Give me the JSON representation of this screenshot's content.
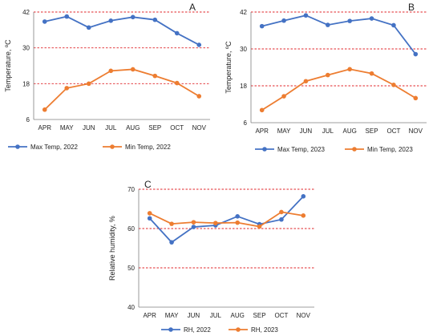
{
  "chart_data": [
    {
      "type": "line",
      "panel_label": "A",
      "title": "",
      "xlabel": "",
      "ylabel": "Temperature, ºC",
      "categories": [
        "APR",
        "MAY",
        "JUN",
        "JUL",
        "AUG",
        "SEP",
        "OCT",
        "NOV"
      ],
      "ylim": [
        6,
        42
      ],
      "yticks": [
        6,
        18,
        30,
        42
      ],
      "reference_lines": [
        18,
        30,
        42
      ],
      "grid": false,
      "legend_position": "bottom",
      "series": [
        {
          "name": "Max Temp, 2022",
          "color": "#4472C4",
          "values": [
            38.8,
            40.5,
            36.8,
            39.1,
            40.3,
            39.4,
            34.9,
            31.0
          ]
        },
        {
          "name": "Min Temp, 2022",
          "color": "#ED7D31",
          "values": [
            9.3,
            16.5,
            18.0,
            22.3,
            22.8,
            20.6,
            18.2,
            13.8
          ]
        }
      ]
    },
    {
      "type": "line",
      "panel_label": "B",
      "title": "",
      "xlabel": "",
      "ylabel": "Temperature, ºC",
      "categories": [
        "APR",
        "MAY",
        "JUN",
        "JUL",
        "AUG",
        "SEP",
        "OCT",
        "NOV"
      ],
      "ylim": [
        6,
        42
      ],
      "yticks": [
        6,
        18,
        30,
        42
      ],
      "reference_lines": [
        18,
        30,
        42
      ],
      "grid": false,
      "legend_position": "bottom",
      "series": [
        {
          "name": "Max Temp, 2023",
          "color": "#4472C4",
          "values": [
            37.4,
            39.2,
            40.9,
            37.8,
            39.1,
            39.9,
            37.7,
            28.3
          ]
        },
        {
          "name": "Min Temp, 2023",
          "color": "#ED7D31",
          "values": [
            10.1,
            14.6,
            19.5,
            21.5,
            23.4,
            22.0,
            18.3,
            14.0
          ]
        }
      ]
    },
    {
      "type": "line",
      "panel_label": "C",
      "title": "",
      "xlabel": "",
      "ylabel": "Relative humidity, %",
      "categories": [
        "APR",
        "MAY",
        "JUN",
        "JUL",
        "AUG",
        "SEP",
        "OCT",
        "NOV"
      ],
      "ylim": [
        40,
        70
      ],
      "yticks": [
        40,
        50,
        60,
        70
      ],
      "reference_lines": [
        50,
        60,
        70
      ],
      "grid": false,
      "legend_position": "bottom",
      "series": [
        {
          "name": "RH, 2022",
          "color": "#4472C4",
          "values": [
            62.6,
            56.5,
            60.4,
            60.8,
            63.1,
            61.1,
            62.3,
            68.2
          ]
        },
        {
          "name": "RH, 2023",
          "color": "#ED7D31",
          "values": [
            63.9,
            61.2,
            61.6,
            61.4,
            61.5,
            60.5,
            64.2,
            63.3
          ]
        }
      ]
    }
  ]
}
